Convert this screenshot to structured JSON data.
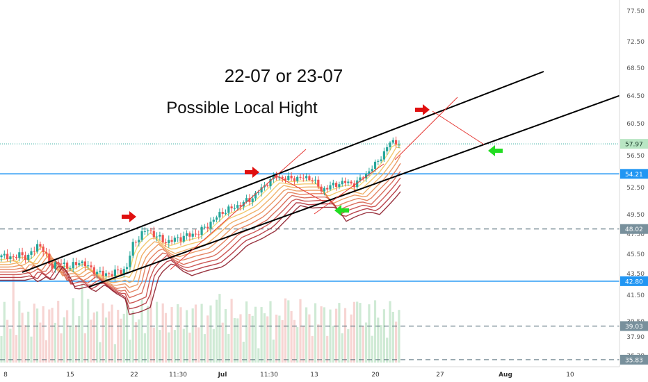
{
  "chart_data": {
    "type": "candlestick",
    "title": "",
    "annotations": [
      {
        "text": "22-07 or 23-07",
        "size": 26
      },
      {
        "text": "Possible Local Hight",
        "size": 24
      }
    ],
    "y_axis": {
      "position": "right",
      "ylim": [
        35.2,
        79.5
      ],
      "tick_labels": [
        "77.50",
        "72.50",
        "68.50",
        "64.50",
        "60.50",
        "56.50",
        "52.50",
        "49.50",
        "47.50",
        "45.50",
        "43.50",
        "41.50",
        "39.50",
        "37.90",
        "36.20"
      ]
    },
    "x_axis": {
      "tick_labels": [
        "8",
        "15",
        "22",
        "11:30",
        "Jul",
        "11:30",
        "13",
        "20",
        "27",
        "Aug",
        "10"
      ]
    },
    "price_levels": [
      {
        "value": 57.97,
        "label": "57.97",
        "style": "dotted",
        "color": "#26a69a"
      },
      {
        "value": 54.21,
        "label": "54.21",
        "style": "solid",
        "color": "#2196f3"
      },
      {
        "value": 48.02,
        "label": "48.02",
        "style": "dashed",
        "color": "#546e7a"
      },
      {
        "value": 42.8,
        "label": "42.80",
        "style": "solid",
        "color": "#2196f3"
      },
      {
        "value": 39.03,
        "label": "39.03",
        "style": "dashed",
        "color": "#546e7a"
      },
      {
        "value": 35.83,
        "label": "35.83",
        "style": "dashed",
        "color": "#546e7a"
      }
    ],
    "colors": {
      "up": "#26a69a",
      "down": "#ef5350",
      "channel": "#000000",
      "target": "#e53935",
      "arrow_up": "#e01010",
      "arrow_down": "#22dd22"
    }
  }
}
